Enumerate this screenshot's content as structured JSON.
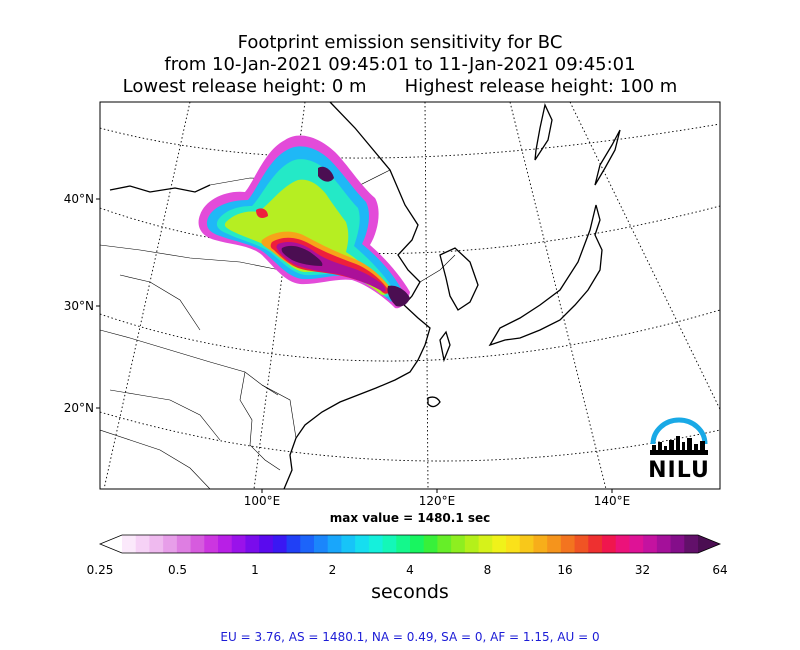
{
  "title": {
    "line1": "Footprint emission sensitivity for BC",
    "line2": "from 10-Jan-2021 09:45:01 to 11-Jan-2021 09:45:01",
    "line3_left": "Lowest release height: 0 m",
    "line3_right": "Highest release height: 100 m"
  },
  "map": {
    "lat_labels": [
      "40°N",
      "30°N",
      "20°N"
    ],
    "lon_labels": [
      "100°E",
      "120°E",
      "140°E"
    ],
    "max_value_label": "max value = 1480.1 sec",
    "logo_text": "NILU"
  },
  "colorbar": {
    "ticks": [
      "0.25",
      "0.5",
      "1",
      "2",
      "4",
      "8",
      "16",
      "32",
      "64"
    ],
    "unit": "seconds",
    "colors": [
      "#fbe9fb",
      "#f6d2f6",
      "#efbaef",
      "#e79ee9",
      "#de7ee2",
      "#d65bde",
      "#cc36e0",
      "#b81fe6",
      "#9a12ea",
      "#7a0cec",
      "#5a0aee",
      "#3a18f3",
      "#2040f6",
      "#1c64fa",
      "#1b86fb",
      "#19a6fb",
      "#17c4f8",
      "#16def0",
      "#15f0dc",
      "#14f7b8",
      "#14f88c",
      "#18f560",
      "#38f03a",
      "#66ee28",
      "#8eee20",
      "#b4f01a",
      "#d6f21a",
      "#f0f21a",
      "#fae11a",
      "#f8c81a",
      "#f7ae1a",
      "#f5941c",
      "#f3741f",
      "#f05424",
      "#ee3030",
      "#f0164e",
      "#ec127a",
      "#de1296",
      "#c412a0",
      "#a4109a",
      "#840e8a",
      "#62106a"
    ],
    "over_color": "#4b0e52"
  },
  "stats_text": "EU = 3.76,  AS = 1480.1,  NA = 0.49,  SA = 0,  AF = 1.15,  AU = 0"
}
